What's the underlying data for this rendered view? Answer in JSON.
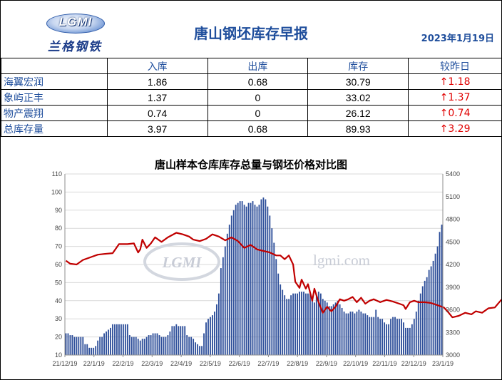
{
  "header": {
    "logo_letters": "LGMI",
    "logo_cn": "兰格钢铁",
    "title": "唐山钢坯库存早报",
    "date": "2023年1月19日"
  },
  "table": {
    "columns": [
      "入库",
      "出库",
      "库存",
      "较昨日"
    ],
    "rows": [
      {
        "name": "海翼宏润",
        "in": "1.86",
        "out": "0.68",
        "stock": "30.79",
        "change": "↑1.18"
      },
      {
        "name": "象屿正丰",
        "in": "1.37",
        "out": "0",
        "stock": "33.02",
        "change": "↑1.37"
      },
      {
        "name": "物产震翔",
        "in": "0.74",
        "out": "0",
        "stock": "26.12",
        "change": "↑0.74"
      },
      {
        "name": "总库存量",
        "in": "3.97",
        "out": "0.68",
        "stock": "89.93",
        "change": "↑3.29"
      }
    ]
  },
  "watermark": {
    "logo": "LGMI",
    "site": "lgmi.com"
  },
  "colors": {
    "bar": "#2e4f9a",
    "line": "#c00000",
    "title": "#1f4e9c",
    "up": "#e00000"
  },
  "chart_data": {
    "type": "bar",
    "title": "唐山样本仓库库存总量与钢坯价格对比图",
    "x_tick_labels": [
      "21/12/19",
      "22/1/19",
      "22/2/19",
      "22/3/19",
      "22/4/19",
      "22/5/19",
      "22/6/19",
      "22/7/19",
      "22/8/19",
      "22/9/19",
      "22/10/19",
      "22/11/19",
      "22/12/19",
      "23/1/19"
    ],
    "ylim": [
      10,
      110
    ],
    "y_ticks": [
      10,
      20,
      30,
      40,
      50,
      60,
      70,
      80,
      90,
      100,
      110
    ],
    "y2lim": [
      3000,
      5400
    ],
    "y2_ticks": [
      3000,
      3300,
      3600,
      3900,
      4200,
      4500,
      4800,
      5100,
      5400
    ],
    "grid": "horizontal",
    "series": [
      {
        "axis": "left",
        "type": "bar",
        "values": [
          22,
          22,
          21,
          21,
          20,
          20,
          20,
          20,
          20,
          16,
          16,
          14,
          14,
          14,
          15,
          18,
          20,
          20,
          22,
          23,
          24,
          25,
          27,
          27,
          27,
          27,
          27,
          27,
          27,
          27,
          21,
          20,
          20,
          20,
          19,
          18,
          19,
          19,
          20,
          21,
          21,
          22,
          22,
          22,
          21,
          20,
          20,
          20,
          21,
          23,
          26,
          26,
          27,
          26,
          26,
          26,
          26,
          21,
          20,
          20,
          19,
          17,
          16,
          15,
          15,
          22,
          28,
          30,
          31,
          32,
          34,
          38,
          44,
          58,
          64,
          70,
          77,
          82,
          87,
          90,
          93,
          94,
          95,
          95,
          93,
          92,
          94,
          94,
          95,
          93,
          92,
          93,
          96,
          97,
          96,
          92,
          87,
          80,
          72,
          63,
          55,
          49,
          46,
          43,
          41,
          41,
          43,
          44,
          44,
          44,
          45,
          45,
          45,
          44,
          44,
          44,
          42,
          39,
          43,
          45,
          44,
          41,
          40,
          39,
          37,
          37,
          38,
          39,
          40,
          38,
          36,
          34,
          33,
          33,
          34,
          34,
          33,
          34,
          35,
          34,
          33,
          33,
          32,
          31,
          31,
          31,
          35,
          31,
          30,
          30,
          28,
          27,
          27,
          30,
          31,
          31,
          30,
          30,
          30,
          28,
          25,
          25,
          25,
          27,
          30,
          34,
          40,
          44,
          48,
          51,
          53,
          57,
          59,
          62,
          66,
          70,
          78,
          82
        ]
      },
      {
        "axis": "right",
        "type": "line",
        "points": [
          [
            0,
            4250
          ],
          [
            2,
            4210
          ],
          [
            5,
            4200
          ],
          [
            8,
            4260
          ],
          [
            12,
            4300
          ],
          [
            15,
            4330
          ],
          [
            18,
            4340
          ],
          [
            22,
            4350
          ],
          [
            25,
            4470
          ],
          [
            29,
            4470
          ],
          [
            32,
            4480
          ],
          [
            34,
            4360
          ],
          [
            35,
            4400
          ],
          [
            36,
            4530
          ],
          [
            38,
            4420
          ],
          [
            40,
            4480
          ],
          [
            42,
            4560
          ],
          [
            45,
            4500
          ],
          [
            48,
            4560
          ],
          [
            52,
            4620
          ],
          [
            55,
            4600
          ],
          [
            58,
            4570
          ],
          [
            60,
            4530
          ],
          [
            63,
            4510
          ],
          [
            66,
            4540
          ],
          [
            69,
            4600
          ],
          [
            72,
            4570
          ],
          [
            75,
            4520
          ],
          [
            78,
            4560
          ],
          [
            81,
            4510
          ],
          [
            84,
            4420
          ],
          [
            87,
            4460
          ],
          [
            90,
            4400
          ],
          [
            93,
            4380
          ],
          [
            96,
            4360
          ],
          [
            99,
            4320
          ],
          [
            101,
            4320
          ],
          [
            103,
            4270
          ],
          [
            105,
            4320
          ],
          [
            107,
            4200
          ],
          [
            108,
            3970
          ],
          [
            110,
            3890
          ],
          [
            111,
            4000
          ],
          [
            113,
            3880
          ],
          [
            114,
            3940
          ],
          [
            116,
            3720
          ],
          [
            117,
            3880
          ],
          [
            119,
            3700
          ],
          [
            121,
            3560
          ],
          [
            123,
            3640
          ],
          [
            125,
            3580
          ],
          [
            127,
            3640
          ],
          [
            129,
            3740
          ],
          [
            131,
            3720
          ],
          [
            133,
            3740
          ],
          [
            135,
            3770
          ],
          [
            137,
            3700
          ],
          [
            139,
            3760
          ],
          [
            141,
            3680
          ],
          [
            143,
            3720
          ],
          [
            145,
            3740
          ],
          [
            148,
            3700
          ],
          [
            151,
            3730
          ],
          [
            154,
            3710
          ],
          [
            157,
            3680
          ],
          [
            159,
            3660
          ],
          [
            160,
            3610
          ],
          [
            162,
            3700
          ],
          [
            164,
            3720
          ],
          [
            166,
            3700
          ],
          [
            169,
            3700
          ],
          [
            172,
            3690
          ],
          [
            175,
            3660
          ],
          [
            178,
            3630
          ],
          [
            180,
            3570
          ],
          [
            182,
            3500
          ],
          [
            185,
            3520
          ],
          [
            188,
            3560
          ],
          [
            191,
            3540
          ],
          [
            193,
            3580
          ],
          [
            196,
            3560
          ],
          [
            199,
            3620
          ],
          [
            202,
            3630
          ],
          [
            205,
            3730
          ],
          [
            208,
            3770
          ],
          [
            211,
            3750
          ],
          [
            214,
            3780
          ],
          [
            217,
            3760
          ],
          [
            220,
            3720
          ],
          [
            222,
            3800
          ],
          [
            224,
            3780
          ],
          [
            226,
            3810
          ],
          [
            228,
            3790
          ],
          [
            230,
            3790
          ]
        ]
      }
    ]
  }
}
